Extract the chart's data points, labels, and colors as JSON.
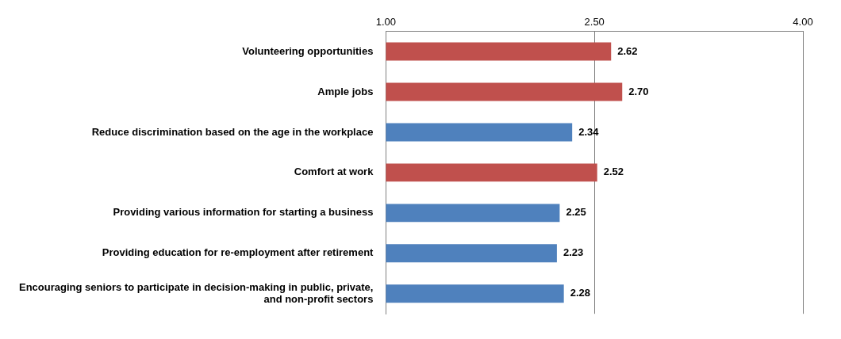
{
  "chart_data": {
    "type": "bar",
    "orientation": "horizontal",
    "categories": [
      "Volunteering opportunities",
      "Ample jobs",
      "Reduce discrimination based on the age in the workplace",
      "Comfort at work",
      "Providing various information for starting a business",
      "Providing education for re-employment after retirement",
      "Encouraging seniors to participate in decision-making in public, private, and non-profit sectors"
    ],
    "values": [
      2.62,
      2.7,
      2.34,
      2.52,
      2.25,
      2.23,
      2.28
    ],
    "value_labels": [
      "2.62",
      "2.70",
      "2.34",
      "2.52",
      "2.25",
      "2.23",
      "2.28"
    ],
    "colors": [
      "#c0504d",
      "#c0504d",
      "#4f81bd",
      "#c0504d",
      "#4f81bd",
      "#4f81bd",
      "#4f81bd"
    ],
    "xlim": [
      1,
      4
    ],
    "xticks": [
      {
        "value": 1,
        "label": "1.00"
      },
      {
        "value": 2.5,
        "label": "2.50"
      },
      {
        "value": 4,
        "label": "4.00"
      }
    ],
    "grid": "x"
  }
}
